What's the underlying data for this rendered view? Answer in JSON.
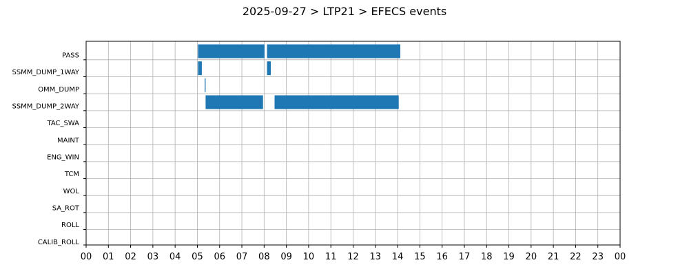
{
  "chart_data": {
    "type": "gantt",
    "title": "2025-09-27 > LTP21 > EFECS events",
    "x_unit": "hour of day",
    "xlim": [
      0,
      24
    ],
    "x_tick_labels": [
      "00",
      "01",
      "02",
      "03",
      "04",
      "05",
      "06",
      "07",
      "08",
      "09",
      "10",
      "11",
      "12",
      "13",
      "14",
      "15",
      "16",
      "17",
      "18",
      "19",
      "20",
      "21",
      "22",
      "23",
      "00"
    ],
    "categories": [
      "PASS",
      "SSMM_DUMP_1WAY",
      "OMM_DUMP",
      "SSMM_DUMP_2WAY",
      "TAC_SWA",
      "MAINT",
      "ENG_WIN",
      "TCM",
      "WOL",
      "SA_ROT",
      "ROLL",
      "CALIB_ROLL"
    ],
    "events": [
      {
        "category": "PASS",
        "start": 5.03,
        "end": 8.02
      },
      {
        "category": "PASS",
        "start": 8.13,
        "end": 14.12
      },
      {
        "category": "SSMM_DUMP_1WAY",
        "start": 5.03,
        "end": 5.2
      },
      {
        "category": "SSMM_DUMP_1WAY",
        "start": 8.13,
        "end": 8.3
      },
      {
        "category": "OMM_DUMP",
        "start": 5.33,
        "end": 5.37
      },
      {
        "category": "SSMM_DUMP_2WAY",
        "start": 5.37,
        "end": 7.95
      },
      {
        "category": "SSMM_DUMP_2WAY",
        "start": 8.47,
        "end": 14.05
      }
    ],
    "grid": true,
    "bar_color": "#1f77b4"
  }
}
